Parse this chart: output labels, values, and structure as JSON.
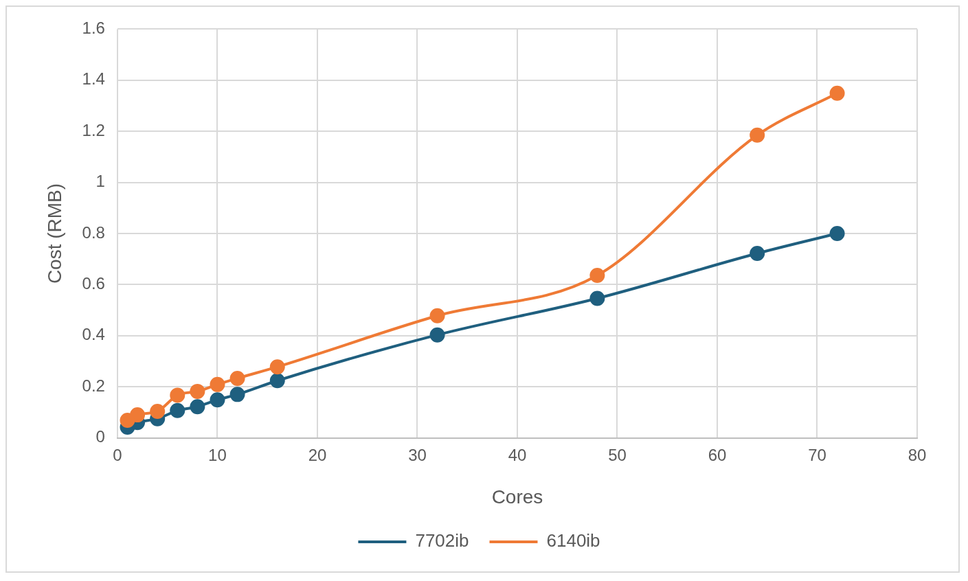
{
  "chart_data": {
    "type": "line",
    "xlabel": "Cores",
    "ylabel": "Cost (RMB)",
    "x": [
      1,
      2,
      4,
      6,
      8,
      10,
      12,
      16,
      32,
      48,
      64,
      72
    ],
    "series": [
      {
        "name": "7702ib",
        "color": "#1f5f7f",
        "values": [
          0.042,
          0.06,
          0.075,
          0.107,
          0.122,
          0.149,
          0.17,
          0.224,
          0.403,
          0.546,
          0.722,
          0.8
        ]
      },
      {
        "name": "6140ib",
        "color": "#ef7a35",
        "values": [
          0.069,
          0.09,
          0.104,
          0.167,
          0.182,
          0.209,
          0.233,
          0.278,
          0.478,
          0.636,
          1.185,
          1.349
        ]
      }
    ],
    "xlim": [
      0,
      80
    ],
    "xticks": [
      0,
      10,
      20,
      30,
      40,
      50,
      60,
      70,
      80
    ],
    "ylim": [
      0,
      1.6
    ],
    "yticks": [
      0,
      0.2,
      0.4,
      0.6,
      0.8,
      1,
      1.2,
      1.4,
      1.6
    ],
    "grid": true,
    "legend": "bottom",
    "marker": "circle",
    "line_style": "solid"
  }
}
